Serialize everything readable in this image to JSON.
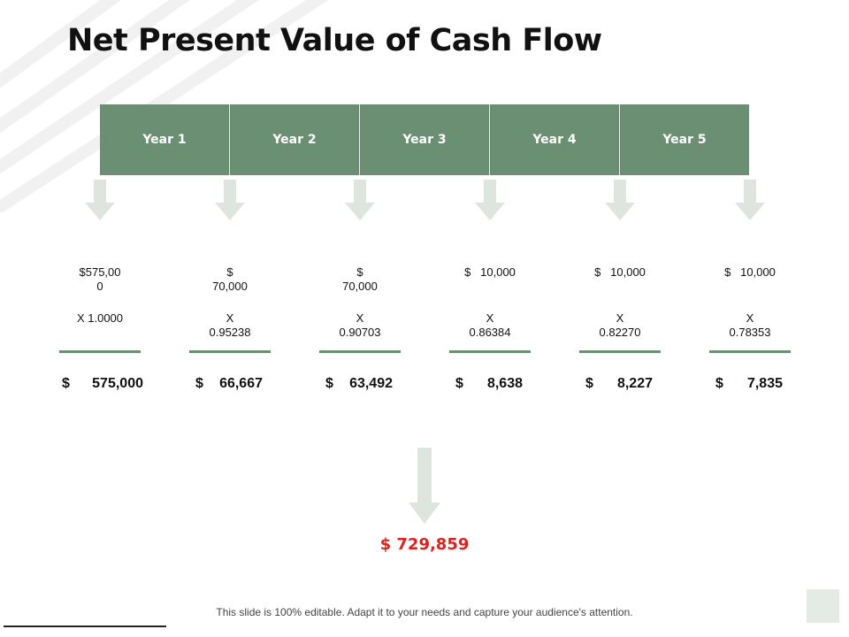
{
  "slide": {
    "title": "Net Present Value of Cash Flow",
    "accent_color": "#6b8f72",
    "total_color": "#e0201c"
  },
  "years": [
    "Year 1",
    "Year 2",
    "Year 3",
    "Year 4",
    "Year 5"
  ],
  "columns": [
    {
      "amount": "$575,00\n0",
      "factor": "X 1.0000",
      "pv_symbol": "$",
      "pv_value": "575,000"
    },
    {
      "amount": "$\n70,000",
      "factor": "X\n0.95238",
      "pv_symbol": "$",
      "pv_value": "66,667"
    },
    {
      "amount": "$\n70,000",
      "factor": "X\n0.90703",
      "pv_symbol": "$",
      "pv_value": "63,492"
    },
    {
      "amount": "$   10,000",
      "factor": "X\n0.86384",
      "pv_symbol": "$",
      "pv_value": "8,638"
    },
    {
      "amount": "$   10,000",
      "factor": "X\n0.82270",
      "pv_symbol": "$",
      "pv_value": "8,227"
    },
    {
      "amount": "$   10,000",
      "factor": "X\n0.78353",
      "pv_symbol": "$",
      "pv_value": "7,835"
    }
  ],
  "total": "$ 729,859",
  "footer": "This slide is 100% editable. Adapt it to your needs and capture your audience's attention."
}
